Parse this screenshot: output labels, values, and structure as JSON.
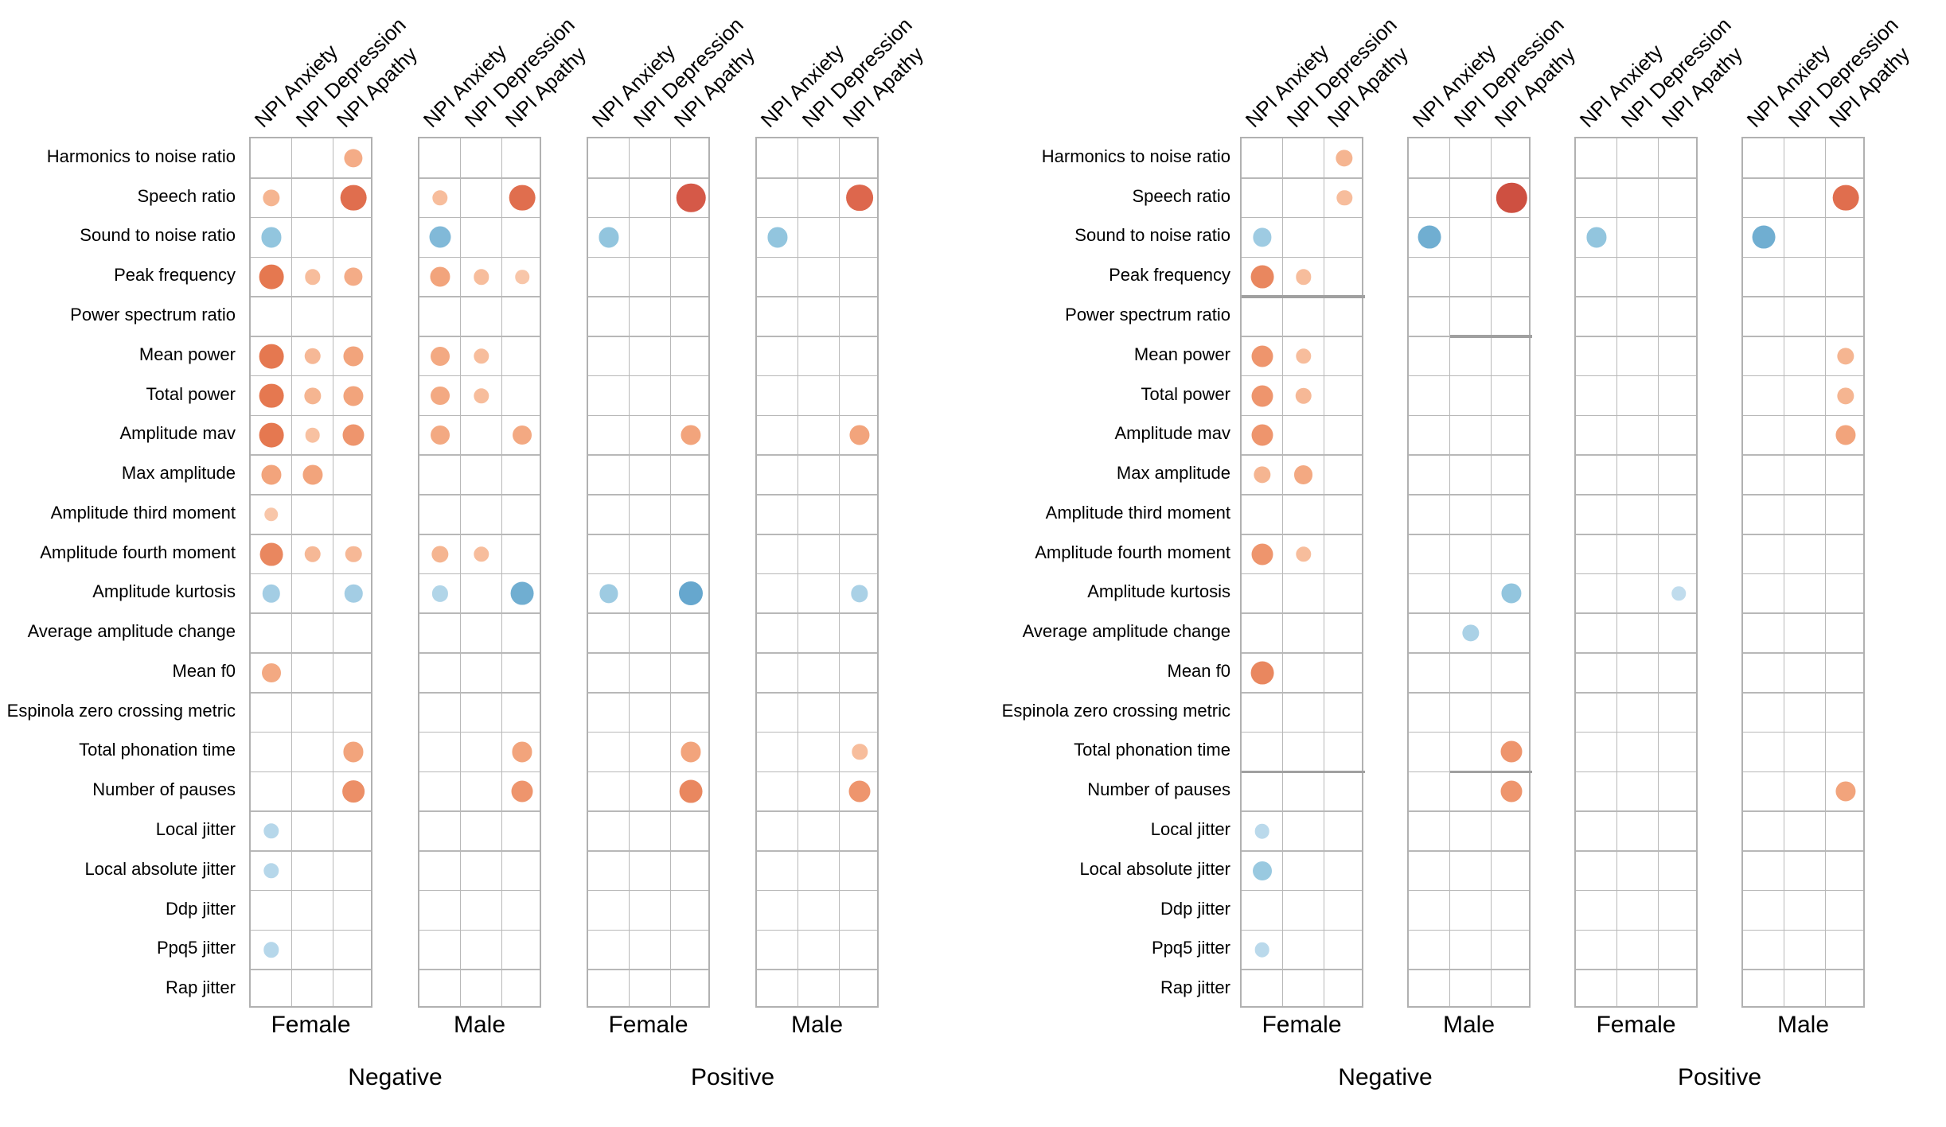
{
  "chart_data": {
    "type": "heatmap",
    "subtype": "correlation-dot-matrix",
    "title": "",
    "col_headers": [
      "NPI Anxiety",
      "NPI Depression",
      "NPI Apathy"
    ],
    "row_labels": [
      "Harmonics to noise ratio",
      "Speech ratio",
      "Sound to noise ratio",
      "Peak frequency",
      "Power spectrum ratio",
      "Mean power",
      "Total power",
      "Amplitude mav",
      "Max amplitude",
      "Amplitude third moment",
      "Amplitude fourth moment",
      "Amplitude kurtosis",
      "Average amplitude change",
      "Mean f0",
      "Espinola zero crossing metric",
      "Total phonation time",
      "Number of pauses",
      "Local jitter",
      "Local absolute jitter",
      "Ddp jitter",
      "Ppq5 jitter",
      "Rap jitter"
    ],
    "sex_axis_labels": [
      "Female",
      "Male",
      "Female",
      "Male"
    ],
    "valence_axis_labels": [
      "Negative",
      "Positive"
    ],
    "value_encoding": {
      "dot_size": "larger dot = stronger association (abs value)",
      "dot_color": "orange/red = positive, blue = negative",
      "positive_color_stops": [
        [
          0.15,
          "#fbd9c3"
        ],
        [
          0.3,
          "#f7bd9c"
        ],
        [
          0.45,
          "#f2a47c"
        ],
        [
          0.6,
          "#e57850"
        ],
        [
          0.72,
          "#d95f4c"
        ],
        [
          0.85,
          "#c7463a"
        ]
      ],
      "negative_color_stops": [
        [
          0.15,
          "#d5e7f3"
        ],
        [
          0.3,
          "#b6d7ea"
        ],
        [
          0.45,
          "#92c5de"
        ],
        [
          0.6,
          "#5fa2cb"
        ],
        [
          0.8,
          "#3d88bd"
        ]
      ],
      "grid_line_color": "#b8b8b8",
      "separator_line_color": "#a0a0a0"
    },
    "panels": [
      {
        "name": "left",
        "groups": [
          {
            "sex_label": "Female",
            "valence_label": "Negative",
            "dots": [
              [
                0,
                2,
                0.4
              ],
              [
                1,
                0,
                0.35
              ],
              [
                1,
                2,
                0.65
              ],
              [
                2,
                0,
                -0.45
              ],
              [
                3,
                0,
                0.6
              ],
              [
                3,
                1,
                0.3
              ],
              [
                3,
                2,
                0.4
              ],
              [
                5,
                0,
                0.6
              ],
              [
                5,
                1,
                0.33
              ],
              [
                5,
                2,
                0.45
              ],
              [
                6,
                0,
                0.6
              ],
              [
                6,
                1,
                0.35
              ],
              [
                6,
                2,
                0.45
              ],
              [
                7,
                0,
                0.6
              ],
              [
                7,
                1,
                0.28
              ],
              [
                7,
                2,
                0.5
              ],
              [
                8,
                0,
                0.45
              ],
              [
                8,
                1,
                0.45
              ],
              [
                9,
                0,
                0.25
              ],
              [
                10,
                0,
                0.55
              ],
              [
                10,
                1,
                0.33
              ],
              [
                10,
                2,
                0.33
              ],
              [
                11,
                0,
                -0.38
              ],
              [
                11,
                2,
                -0.38
              ],
              [
                13,
                0,
                0.42
              ],
              [
                15,
                2,
                0.45
              ],
              [
                16,
                2,
                0.52
              ],
              [
                17,
                0,
                -0.3
              ],
              [
                18,
                0,
                -0.3
              ],
              [
                20,
                0,
                -0.3
              ]
            ],
            "separators": []
          },
          {
            "sex_label": "Male",
            "valence_label": "Negative",
            "dots": [
              [
                1,
                0,
                0.3
              ],
              [
                1,
                2,
                0.65
              ],
              [
                2,
                0,
                -0.5
              ],
              [
                3,
                0,
                0.45
              ],
              [
                3,
                1,
                0.3
              ],
              [
                3,
                2,
                0.25
              ],
              [
                5,
                0,
                0.42
              ],
              [
                5,
                1,
                0.3
              ],
              [
                6,
                0,
                0.42
              ],
              [
                6,
                1,
                0.3
              ],
              [
                7,
                0,
                0.42
              ],
              [
                7,
                2,
                0.42
              ],
              [
                10,
                0,
                0.35
              ],
              [
                10,
                1,
                0.3
              ],
              [
                11,
                0,
                -0.32
              ],
              [
                11,
                2,
                -0.55
              ],
              [
                15,
                2,
                0.45
              ],
              [
                16,
                2,
                0.5
              ]
            ],
            "separators": []
          },
          {
            "sex_label": "Female",
            "valence_label": "Positive",
            "dots": [
              [
                1,
                2,
                0.75
              ],
              [
                2,
                0,
                -0.45
              ],
              [
                7,
                2,
                0.45
              ],
              [
                11,
                0,
                -0.4
              ],
              [
                11,
                2,
                -0.58
              ],
              [
                15,
                2,
                0.45
              ],
              [
                16,
                2,
                0.55
              ]
            ],
            "separators": []
          },
          {
            "sex_label": "Male",
            "valence_label": "Positive",
            "dots": [
              [
                1,
                2,
                0.68
              ],
              [
                2,
                0,
                -0.45
              ],
              [
                7,
                2,
                0.45
              ],
              [
                11,
                2,
                -0.35
              ],
              [
                15,
                2,
                0.3
              ],
              [
                16,
                2,
                0.5
              ]
            ],
            "separators": []
          }
        ]
      },
      {
        "name": "right",
        "groups": [
          {
            "sex_label": "Female",
            "valence_label": "Negative",
            "dots": [
              [
                0,
                2,
                0.35
              ],
              [
                1,
                2,
                0.3
              ],
              [
                2,
                0,
                -0.4
              ],
              [
                3,
                0,
                0.55
              ],
              [
                3,
                1,
                0.3
              ],
              [
                5,
                0,
                0.5
              ],
              [
                5,
                1,
                0.3
              ],
              [
                6,
                0,
                0.5
              ],
              [
                6,
                1,
                0.33
              ],
              [
                7,
                0,
                0.5
              ],
              [
                8,
                0,
                0.35
              ],
              [
                8,
                1,
                0.42
              ],
              [
                10,
                0,
                0.5
              ],
              [
                10,
                1,
                0.3
              ],
              [
                13,
                0,
                0.55
              ],
              [
                17,
                0,
                -0.28
              ],
              [
                18,
                0,
                -0.42
              ],
              [
                20,
                0,
                -0.28
              ]
            ],
            "separators": [
              {
                "below_row": 3,
                "from_col": 0,
                "to_col": 3
              },
              {
                "below_row": 15,
                "from_col": 0,
                "to_col": 3
              }
            ]
          },
          {
            "sex_label": "Male",
            "valence_label": "Negative",
            "dots": [
              [
                1,
                2,
                0.8
              ],
              [
                2,
                0,
                -0.55
              ],
              [
                11,
                2,
                -0.45
              ],
              [
                12,
                1,
                -0.35
              ],
              [
                15,
                2,
                0.5
              ],
              [
                16,
                2,
                0.5
              ]
            ],
            "separators": [
              {
                "below_row": 4,
                "from_col": 1,
                "to_col": 3
              },
              {
                "below_row": 15,
                "from_col": 1,
                "to_col": 3
              }
            ]
          },
          {
            "sex_label": "Female",
            "valence_label": "Positive",
            "dots": [
              [
                2,
                0,
                -0.45
              ],
              [
                11,
                2,
                -0.25
              ]
            ],
            "separators": []
          },
          {
            "sex_label": "Male",
            "valence_label": "Positive",
            "dots": [
              [
                1,
                2,
                0.65
              ],
              [
                2,
                0,
                -0.55
              ],
              [
                5,
                2,
                0.35
              ],
              [
                6,
                2,
                0.35
              ],
              [
                7,
                2,
                0.45
              ],
              [
                16,
                2,
                0.45
              ]
            ],
            "separators": []
          }
        ]
      }
    ]
  }
}
